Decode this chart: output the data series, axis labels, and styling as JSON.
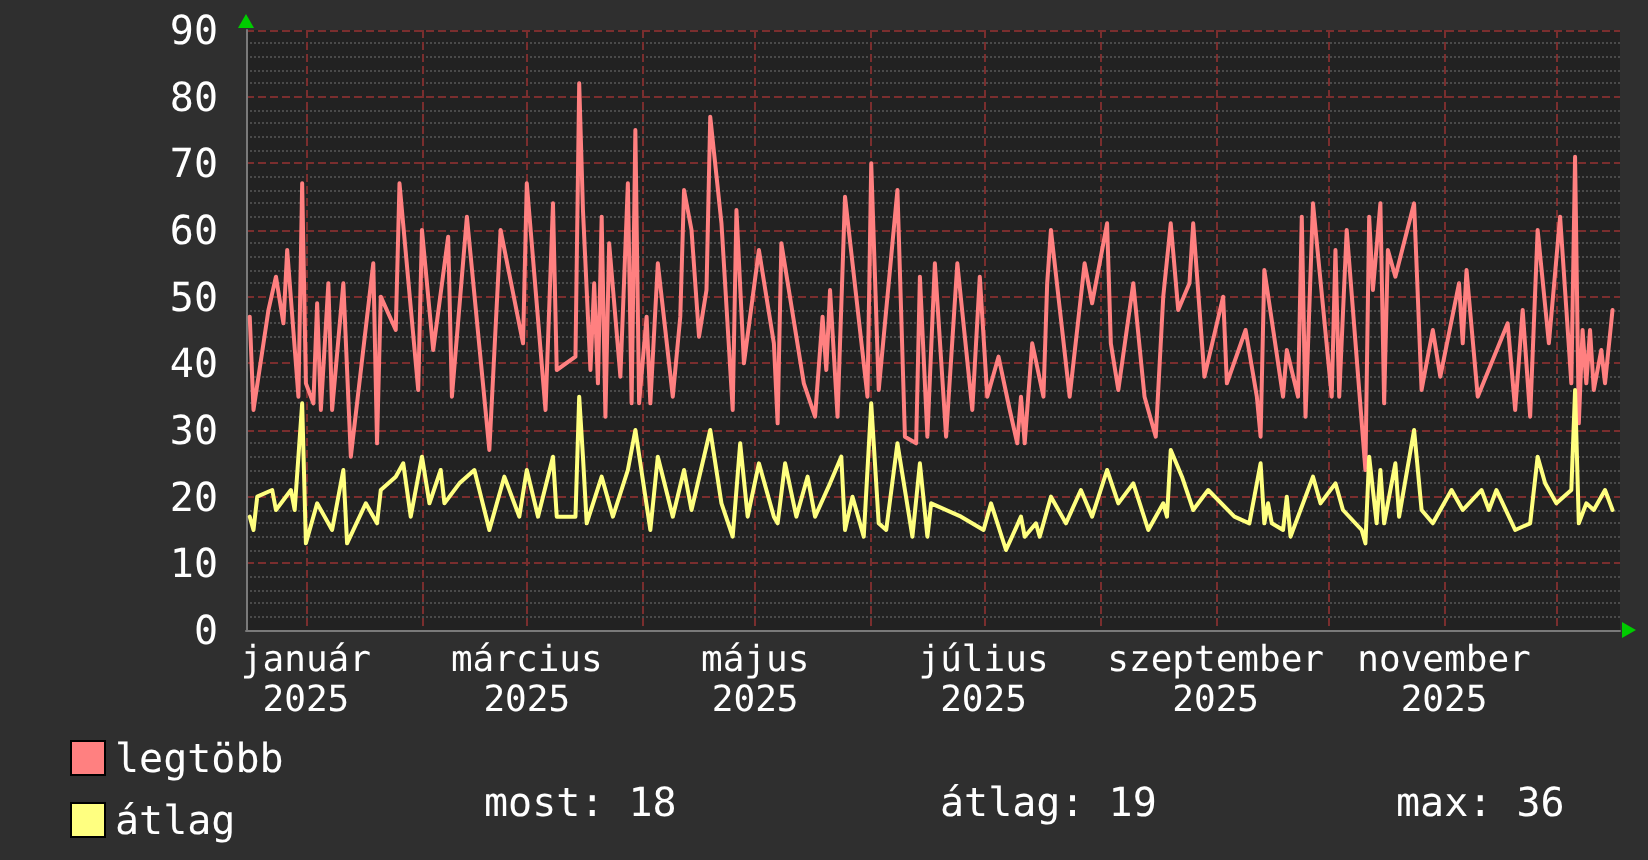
{
  "chart_data": {
    "type": "line",
    "xlim": [
      "2024-12-16",
      "2025-12-18"
    ],
    "xticks": [
      {
        "value": "2025-01-01",
        "label": "január 2025"
      },
      {
        "value": "2025-02-01",
        "label": null
      },
      {
        "value": "2025-03-01",
        "label": "március 2025"
      },
      {
        "value": "2025-04-01",
        "label": null
      },
      {
        "value": "2025-05-01",
        "label": "május 2025"
      },
      {
        "value": "2025-06-01",
        "label": null
      },
      {
        "value": "2025-07-01",
        "label": "július 2025"
      },
      {
        "value": "2025-08-01",
        "label": null
      },
      {
        "value": "2025-09-01",
        "label": "szeptember 2025"
      },
      {
        "value": "2025-10-01",
        "label": null
      },
      {
        "value": "2025-11-01",
        "label": "november 2025"
      },
      {
        "value": "2025-12-01",
        "label": null
      }
    ],
    "ylim": [
      0,
      90
    ],
    "yticks": [
      0,
      10,
      20,
      30,
      40,
      50,
      60,
      70,
      80,
      90
    ],
    "grid": true,
    "legend": "bottom left",
    "annotations": [
      "most: 18",
      "átlag: 19",
      "max: 36"
    ],
    "series": [
      {
        "name": "legtöbb",
        "color": "#ff8080",
        "x": [
          "2024-12-17",
          "2024-12-18",
          "2024-12-22",
          "2024-12-24",
          "2024-12-26",
          "2024-12-27",
          "2024-12-30",
          "2024-12-31",
          "2025-01-01",
          "2025-01-03",
          "2025-01-04",
          "2025-01-05",
          "2025-01-07",
          "2025-01-08",
          "2025-01-11",
          "2025-01-13",
          "2025-01-19",
          "2025-01-20",
          "2025-01-21",
          "2025-01-25",
          "2025-01-26",
          "2025-01-31",
          "2025-02-01",
          "2025-02-04",
          "2025-02-08",
          "2025-02-09",
          "2025-02-13",
          "2025-02-19",
          "2025-02-22",
          "2025-02-28",
          "2025-03-01",
          "2025-03-06",
          "2025-03-08",
          "2025-03-09",
          "2025-03-14",
          "2025-03-15",
          "2025-03-16",
          "2025-03-18",
          "2025-03-19",
          "2025-03-20",
          "2025-03-21",
          "2025-03-22",
          "2025-03-23",
          "2025-03-26",
          "2025-03-28",
          "2025-03-29",
          "2025-03-30",
          "2025-03-31",
          "2025-04-02",
          "2025-04-03",
          "2025-04-05",
          "2025-04-09",
          "2025-04-11",
          "2025-04-12",
          "2025-04-14",
          "2025-04-16",
          "2025-04-18",
          "2025-04-19",
          "2025-04-22",
          "2025-04-25",
          "2025-04-26",
          "2025-04-28",
          "2025-05-02",
          "2025-05-06",
          "2025-05-07",
          "2025-05-08",
          "2025-05-14",
          "2025-05-17",
          "2025-05-19",
          "2025-05-20",
          "2025-05-21",
          "2025-05-23",
          "2025-05-25",
          "2025-05-31",
          "2025-06-01",
          "2025-06-03",
          "2025-06-08",
          "2025-06-10",
          "2025-06-13",
          "2025-06-14",
          "2025-06-16",
          "2025-06-18",
          "2025-06-21",
          "2025-06-24",
          "2025-06-28",
          "2025-06-30",
          "2025-07-02",
          "2025-07-05",
          "2025-07-08",
          "2025-07-10",
          "2025-07-11",
          "2025-07-12",
          "2025-07-14",
          "2025-07-17",
          "2025-07-18",
          "2025-07-19",
          "2025-07-24",
          "2025-07-28",
          "2025-07-30",
          "2025-08-03",
          "2025-08-04",
          "2025-08-06",
          "2025-08-10",
          "2025-08-13",
          "2025-08-16",
          "2025-08-18",
          "2025-08-20",
          "2025-08-22",
          "2025-08-25",
          "2025-08-26",
          "2025-08-29",
          "2025-09-03",
          "2025-09-04",
          "2025-09-09",
          "2025-09-12",
          "2025-09-13",
          "2025-09-14",
          "2025-09-19",
          "2025-09-20",
          "2025-09-23",
          "2025-09-24",
          "2025-09-25",
          "2025-09-27",
          "2025-10-02",
          "2025-10-03",
          "2025-10-04",
          "2025-10-06",
          "2025-10-11",
          "2025-10-12",
          "2025-10-13",
          "2025-10-15",
          "2025-10-16",
          "2025-10-17",
          "2025-10-19",
          "2025-10-24",
          "2025-10-26",
          "2025-10-29",
          "2025-10-31",
          "2025-11-05",
          "2025-11-06",
          "2025-11-07",
          "2025-11-10",
          "2025-11-18",
          "2025-11-20",
          "2025-11-22",
          "2025-11-24",
          "2025-11-26",
          "2025-11-29",
          "2025-12-02",
          "2025-12-05",
          "2025-12-06",
          "2025-12-07",
          "2025-12-08",
          "2025-12-09",
          "2025-12-10",
          "2025-12-11",
          "2025-12-13",
          "2025-12-14",
          "2025-12-16"
        ],
        "values": [
          47,
          33,
          48,
          53,
          46,
          57,
          35,
          67,
          37,
          34,
          49,
          33,
          52,
          33,
          52,
          26,
          55,
          28,
          50,
          45,
          67,
          36,
          60,
          42,
          59,
          35,
          62,
          27,
          60,
          43,
          67,
          33,
          64,
          39,
          41,
          82,
          63,
          39,
          52,
          37,
          62,
          32,
          58,
          38,
          67,
          34,
          75,
          34,
          47,
          34,
          55,
          35,
          47,
          66,
          60,
          44,
          51,
          77,
          61,
          33,
          63,
          40,
          57,
          43,
          31,
          58,
          37,
          32,
          47,
          39,
          51,
          32,
          65,
          35,
          70,
          36,
          66,
          29,
          28,
          53,
          29,
          55,
          29,
          55,
          33,
          53,
          35,
          41,
          33,
          28,
          35,
          28,
          43,
          35,
          52,
          60,
          35,
          55,
          49,
          61,
          43,
          36,
          52,
          35,
          29,
          50,
          61,
          48,
          52,
          61,
          38,
          50,
          37,
          45,
          35,
          29,
          54,
          35,
          42,
          35,
          62,
          32,
          64,
          35,
          57,
          35,
          60,
          24,
          62,
          51,
          64,
          34,
          57,
          53,
          64,
          36,
          45,
          38,
          52,
          43,
          54,
          35,
          46,
          33,
          48,
          32,
          60,
          43,
          62,
          37,
          71,
          31,
          45,
          37,
          45,
          36,
          42,
          37,
          48
        ]
      },
      {
        "name": "átlag",
        "color": "#ffff80",
        "x": [
          "2024-12-17",
          "2024-12-18",
          "2024-12-19",
          "2024-12-23",
          "2024-12-24",
          "2024-12-28",
          "2024-12-29",
          "2024-12-31",
          "2025-01-01",
          "2025-01-04",
          "2025-01-08",
          "2025-01-11",
          "2025-01-12",
          "2025-01-17",
          "2025-01-20",
          "2025-01-21",
          "2025-01-25",
          "2025-01-27",
          "2025-01-29",
          "2025-02-01",
          "2025-02-03",
          "2025-02-06",
          "2025-02-07",
          "2025-02-11",
          "2025-02-15",
          "2025-02-19",
          "2025-02-23",
          "2025-02-27",
          "2025-03-01",
          "2025-03-04",
          "2025-03-08",
          "2025-03-09",
          "2025-03-14",
          "2025-03-15",
          "2025-03-16",
          "2025-03-17",
          "2025-03-21",
          "2025-03-24",
          "2025-03-28",
          "2025-03-30",
          "2025-04-03",
          "2025-04-05",
          "2025-04-09",
          "2025-04-12",
          "2025-04-14",
          "2025-04-19",
          "2025-04-22",
          "2025-04-25",
          "2025-04-27",
          "2025-04-29",
          "2025-05-02",
          "2025-05-06",
          "2025-05-07",
          "2025-05-09",
          "2025-05-12",
          "2025-05-15",
          "2025-05-17",
          "2025-05-21",
          "2025-05-24",
          "2025-05-25",
          "2025-05-27",
          "2025-05-30",
          "2025-06-01",
          "2025-06-03",
          "2025-06-05",
          "2025-06-08",
          "2025-06-12",
          "2025-06-14",
          "2025-06-16",
          "2025-06-17",
          "2025-06-25",
          "2025-07-01",
          "2025-07-03",
          "2025-07-07",
          "2025-07-11",
          "2025-07-12",
          "2025-07-15",
          "2025-07-16",
          "2025-07-19",
          "2025-07-23",
          "2025-07-27",
          "2025-07-30",
          "2025-08-03",
          "2025-08-06",
          "2025-08-10",
          "2025-08-14",
          "2025-08-18",
          "2025-08-19",
          "2025-08-20",
          "2025-08-23",
          "2025-08-26",
          "2025-08-30",
          "2025-09-06",
          "2025-09-10",
          "2025-09-13",
          "2025-09-14",
          "2025-09-15",
          "2025-09-16",
          "2025-09-19",
          "2025-09-20",
          "2025-09-21",
          "2025-09-27",
          "2025-09-29",
          "2025-10-03",
          "2025-10-05",
          "2025-10-10",
          "2025-10-11",
          "2025-10-12",
          "2025-10-14",
          "2025-10-15",
          "2025-10-16",
          "2025-10-19",
          "2025-10-20",
          "2025-10-24",
          "2025-10-26",
          "2025-10-29",
          "2025-11-03",
          "2025-11-06",
          "2025-11-11",
          "2025-11-13",
          "2025-11-15",
          "2025-11-20",
          "2025-11-24",
          "2025-11-26",
          "2025-11-28",
          "2025-12-01",
          "2025-12-05",
          "2025-12-06",
          "2025-12-07",
          "2025-12-09",
          "2025-12-11",
          "2025-12-14",
          "2025-12-16"
        ],
        "values": [
          17,
          15,
          20,
          21,
          18,
          21,
          18,
          34,
          13,
          19,
          15,
          24,
          13,
          19,
          16,
          21,
          23,
          25,
          17,
          26,
          19,
          24,
          19,
          22,
          24,
          15,
          23,
          17,
          24,
          17,
          26,
          17,
          17,
          35,
          26,
          16,
          23,
          17,
          24,
          30,
          15,
          26,
          17,
          24,
          18,
          30,
          19,
          14,
          28,
          17,
          25,
          17,
          16,
          25,
          17,
          23,
          17,
          22,
          26,
          15,
          20,
          14,
          34,
          16,
          15,
          28,
          14,
          25,
          14,
          19,
          17,
          15,
          19,
          12,
          17,
          14,
          16,
          14,
          20,
          16,
          21,
          17,
          24,
          19,
          22,
          15,
          19,
          17,
          27,
          23,
          18,
          21,
          17,
          16,
          25,
          16,
          19,
          16,
          15,
          20,
          14,
          23,
          19,
          22,
          18,
          15,
          13,
          26,
          16,
          24,
          16,
          25,
          17,
          30,
          18,
          16,
          21,
          18,
          21,
          18,
          21,
          15,
          16,
          26,
          22,
          19,
          21,
          36,
          16,
          19,
          18,
          21,
          18
        ]
      }
    ]
  }
}
